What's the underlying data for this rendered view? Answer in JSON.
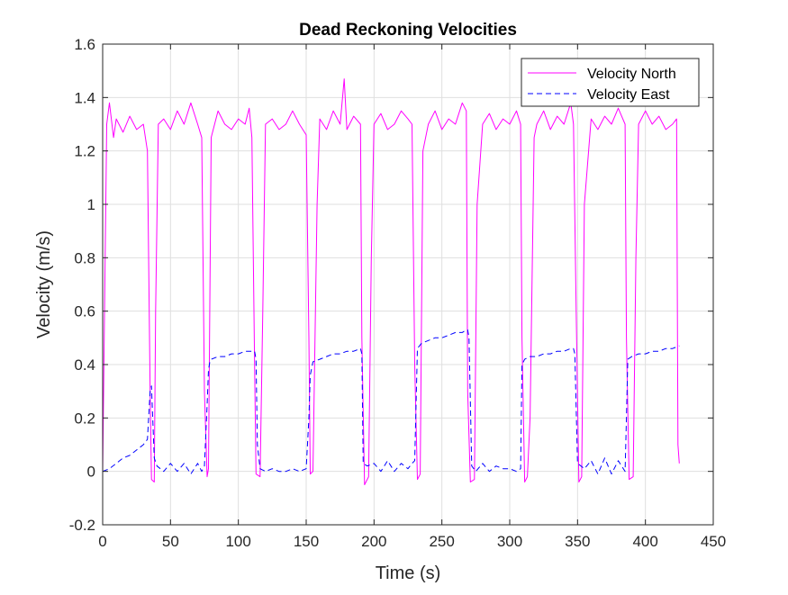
{
  "chart_data": {
    "type": "line",
    "title": "Dead Reckoning Velocities",
    "xlabel": "Time (s)",
    "ylabel": "Velocity (m/s)",
    "xlim": [
      0,
      450
    ],
    "ylim": [
      -0.2,
      1.6
    ],
    "xticks": [
      0,
      50,
      100,
      150,
      200,
      250,
      300,
      350,
      400,
      450
    ],
    "yticks": [
      -0.2,
      0,
      0.2,
      0.4,
      0.6,
      0.8,
      1,
      1.2,
      1.4,
      1.6
    ],
    "xtick_labels": [
      "0",
      "50",
      "100",
      "150",
      "200",
      "250",
      "300",
      "350",
      "400",
      "450"
    ],
    "ytick_labels": [
      "-0.2",
      "0",
      "0.2",
      "0.4",
      "0.6",
      "0.8",
      "1",
      "1.2",
      "1.4",
      "1.6"
    ],
    "grid": true,
    "legend_position": "top-right",
    "series": [
      {
        "name": "Velocity North",
        "color": "#ff00ff",
        "line_style": "solid",
        "x": [
          0,
          3,
          5,
          8,
          10,
          15,
          20,
          25,
          30,
          33,
          35,
          36,
          38,
          39,
          41,
          45,
          50,
          55,
          60,
          65,
          70,
          73,
          75,
          77,
          78,
          80,
          85,
          90,
          95,
          100,
          105,
          108,
          110,
          112,
          113,
          116,
          118,
          120,
          125,
          130,
          135,
          140,
          145,
          150,
          152,
          153,
          155,
          158,
          160,
          165,
          170,
          175,
          178,
          180,
          185,
          190,
          191,
          193,
          196,
          198,
          200,
          205,
          210,
          215,
          220,
          225,
          228,
          230,
          232,
          234,
          236,
          240,
          245,
          250,
          255,
          260,
          265,
          268,
          269,
          271,
          274,
          276,
          280,
          285,
          290,
          295,
          300,
          305,
          308,
          309,
          311,
          313,
          315,
          318,
          320,
          325,
          330,
          335,
          340,
          345,
          347,
          349,
          351,
          353,
          355,
          360,
          365,
          370,
          375,
          380,
          385,
          386,
          388,
          391,
          393,
          395,
          400,
          405,
          410,
          415,
          420,
          423,
          424,
          425
        ],
        "values": [
          0.0,
          1.3,
          1.38,
          1.25,
          1.32,
          1.27,
          1.33,
          1.28,
          1.3,
          1.2,
          0.3,
          -0.03,
          -0.04,
          0.6,
          1.3,
          1.32,
          1.28,
          1.35,
          1.3,
          1.38,
          1.3,
          1.25,
          0.3,
          -0.02,
          0.01,
          1.25,
          1.35,
          1.3,
          1.28,
          1.32,
          1.3,
          1.36,
          1.25,
          0.4,
          -0.01,
          -0.02,
          0.6,
          1.3,
          1.32,
          1.28,
          1.3,
          1.35,
          1.3,
          1.26,
          0.5,
          -0.01,
          0.0,
          1.0,
          1.32,
          1.28,
          1.35,
          1.3,
          1.47,
          1.28,
          1.33,
          1.3,
          0.5,
          -0.05,
          -0.02,
          0.8,
          1.3,
          1.34,
          1.28,
          1.3,
          1.35,
          1.32,
          1.3,
          0.4,
          -0.03,
          -0.01,
          1.2,
          1.3,
          1.35,
          1.28,
          1.32,
          1.3,
          1.38,
          1.35,
          0.3,
          -0.04,
          -0.03,
          1.0,
          1.3,
          1.34,
          1.28,
          1.32,
          1.3,
          1.35,
          1.3,
          0.5,
          -0.04,
          -0.02,
          0.2,
          1.25,
          1.3,
          1.35,
          1.28,
          1.33,
          1.3,
          1.38,
          1.3,
          0.6,
          -0.04,
          -0.02,
          1.0,
          1.32,
          1.28,
          1.33,
          1.3,
          1.36,
          1.3,
          0.5,
          -0.03,
          -0.02,
          0.8,
          1.3,
          1.35,
          1.3,
          1.33,
          1.28,
          1.3,
          1.32,
          0.1,
          0.03
        ]
      },
      {
        "name": "Velocity East",
        "color": "#0000ff",
        "line_style": "dashed",
        "x": [
          0,
          5,
          10,
          15,
          20,
          25,
          30,
          33,
          35,
          36,
          38,
          40,
          45,
          50,
          55,
          60,
          65,
          70,
          73,
          75,
          77,
          78,
          79,
          80,
          85,
          90,
          95,
          100,
          105,
          110,
          112,
          113,
          114,
          116,
          120,
          125,
          130,
          135,
          140,
          145,
          150,
          152,
          153,
          155,
          160,
          165,
          170,
          175,
          180,
          185,
          190,
          191,
          192,
          195,
          200,
          205,
          210,
          215,
          220,
          225,
          228,
          230,
          232,
          235,
          240,
          245,
          250,
          255,
          260,
          265,
          268,
          269,
          270,
          272,
          275,
          280,
          285,
          290,
          295,
          300,
          305,
          308,
          309,
          311,
          315,
          320,
          325,
          330,
          335,
          340,
          345,
          347,
          348,
          350,
          355,
          360,
          365,
          370,
          375,
          380,
          385,
          386,
          387,
          390,
          395,
          400,
          405,
          410,
          415,
          420,
          425
        ],
        "values": [
          0.0,
          0.01,
          0.03,
          0.05,
          0.06,
          0.08,
          0.1,
          0.12,
          0.3,
          0.32,
          0.05,
          0.02,
          0.0,
          0.03,
          0.0,
          0.03,
          -0.01,
          0.03,
          0.0,
          0.02,
          0.25,
          0.38,
          0.41,
          0.42,
          0.43,
          0.43,
          0.44,
          0.44,
          0.45,
          0.45,
          0.45,
          0.42,
          0.1,
          0.01,
          0.0,
          0.01,
          0.0,
          0.0,
          0.01,
          0.0,
          0.01,
          0.2,
          0.36,
          0.41,
          0.42,
          0.43,
          0.44,
          0.44,
          0.45,
          0.45,
          0.46,
          0.44,
          0.03,
          0.02,
          0.03,
          0.0,
          0.04,
          0.0,
          0.03,
          0.01,
          0.03,
          0.04,
          0.46,
          0.48,
          0.49,
          0.5,
          0.5,
          0.51,
          0.52,
          0.52,
          0.53,
          0.53,
          0.5,
          0.02,
          0.0,
          0.03,
          0.0,
          0.02,
          0.01,
          0.01,
          0.0,
          0.01,
          0.4,
          0.42,
          0.43,
          0.43,
          0.44,
          0.44,
          0.45,
          0.45,
          0.46,
          0.46,
          0.44,
          0.03,
          0.01,
          0.04,
          -0.01,
          0.05,
          -0.01,
          0.04,
          0.0,
          0.2,
          0.42,
          0.43,
          0.44,
          0.44,
          0.45,
          0.45,
          0.46,
          0.46,
          0.47
        ]
      }
    ]
  }
}
